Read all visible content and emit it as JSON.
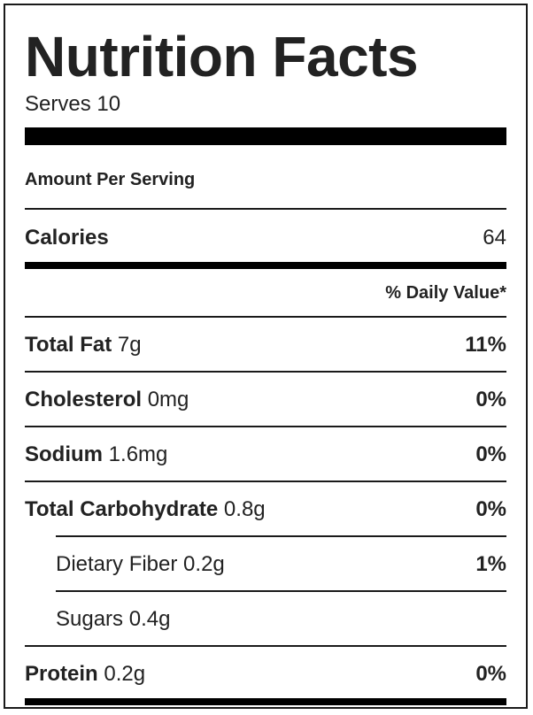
{
  "label": {
    "title": "Nutrition Facts",
    "serves": "Serves 10",
    "amount_per_serving": "Amount Per Serving",
    "calories": {
      "label": "Calories",
      "value": "64"
    },
    "daily_value_header": "% Daily Value*",
    "nutrients": {
      "total_fat": {
        "name": "Total Fat",
        "amount": "7g",
        "dv": "11%"
      },
      "cholesterol": {
        "name": "Cholesterol",
        "amount": "0mg",
        "dv": "0%"
      },
      "sodium": {
        "name": "Sodium",
        "amount": "1.6mg",
        "dv": "0%"
      },
      "total_carbohydrate": {
        "name": "Total Carbohydrate",
        "amount": "0.8g",
        "dv": "0%"
      },
      "dietary_fiber": {
        "name": "Dietary Fiber",
        "amount": "0.2g",
        "dv": "1%"
      },
      "sugars": {
        "name": "Sugars",
        "amount": "0.4g"
      },
      "protein": {
        "name": "Protein",
        "amount": "0.2g",
        "dv": "0%"
      }
    }
  },
  "colors": {
    "text": "#222222",
    "rule": "#000000",
    "background": "#ffffff"
  }
}
